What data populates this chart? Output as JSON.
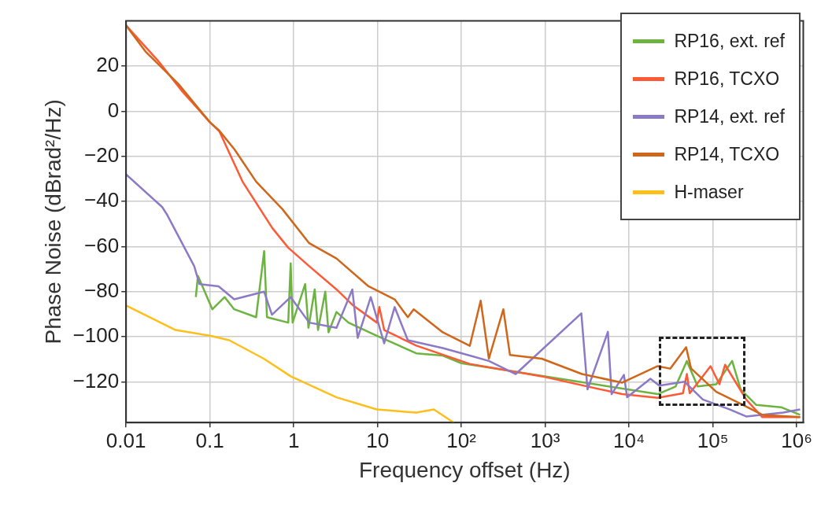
{
  "chart_data": {
    "type": "line",
    "xlabel": "Frequency offset (Hz)",
    "ylabel": "Phase Noise (dBrad²/Hz)",
    "log": "x",
    "grid": true,
    "legend": "top right",
    "marker": "none",
    "line_style": "solid",
    "xlim": [
      0.01,
      1200000
    ],
    "ylim": [
      -138,
      40
    ],
    "xticks": [
      0.01,
      0.1,
      1,
      10,
      {
        "value": 100,
        "label": "10²"
      },
      {
        "value": 1000,
        "label": "10³"
      },
      {
        "value": 10000,
        "label": "10⁴"
      },
      {
        "value": 100000,
        "label": "10⁵"
      },
      {
        "value": 1000000,
        "label": "10⁶"
      }
    ],
    "yticks": [
      -120,
      -100,
      -80,
      -60,
      -40,
      -20,
      0,
      20
    ],
    "series": [
      {
        "name": "RP16, ext. ref",
        "color": "#6db33f",
        "x": [
          0.068,
          0.072,
          0.107,
          0.15,
          0.195,
          0.356,
          0.444,
          0.48,
          0.86,
          0.92,
          0.97,
          1.37,
          1.5,
          1.78,
          1.95,
          2.38,
          2.6,
          3.24,
          4.5,
          9.8,
          29,
          60,
          100,
          22000,
          36000,
          49000,
          66000,
          110000,
          170000,
          215000,
          330000,
          650000,
          1100000
        ],
        "values": [
          -82.4,
          -73,
          -87.8,
          -82.4,
          -87.8,
          -91.3,
          -62,
          -91.3,
          -93.7,
          -67.4,
          -93.7,
          -76.6,
          -96,
          -79,
          -97,
          -80,
          -98,
          -89,
          -93.7,
          -99.5,
          -107.3,
          -108.3,
          -111.7,
          -125.4,
          -122,
          -110.7,
          -122,
          -121,
          -110.7,
          -123.3,
          -130.2,
          -131.2,
          -134.6
        ]
      },
      {
        "name": "RP16, TCXO",
        "color": "#ff5a36",
        "x": [
          0.01,
          0.024,
          0.047,
          0.1,
          0.13,
          0.245,
          0.553,
          0.86,
          1.53,
          3.24,
          5,
          9.8,
          10.5,
          12,
          29,
          126,
          910,
          8300,
          22000,
          44000,
          49000,
          53000,
          94000,
          120000,
          140000,
          250000,
          390000,
          1100000
        ],
        "values": [
          38,
          22.4,
          8.7,
          -4.9,
          -9,
          -31.2,
          -51.7,
          -60.5,
          -68.7,
          -79,
          -85.8,
          -93.7,
          -86.8,
          -97,
          -103.9,
          -112,
          -117.5,
          -125.4,
          -127,
          -125,
          -116.5,
          -125,
          -113,
          -121,
          -112.4,
          -127.8,
          -135.6,
          -135.6
        ]
      },
      {
        "name": "RP14, ext. ref",
        "color": "#8c7ac6",
        "x": [
          0.01,
          0.027,
          0.031,
          0.065,
          0.075,
          0.127,
          0.195,
          0.444,
          0.55,
          0.92,
          1.53,
          3.24,
          5,
          5.8,
          8.3,
          12,
          16,
          23,
          60,
          126,
          213,
          445,
          2700,
          3200,
          5600,
          6200,
          8700,
          9500,
          18000,
          23000,
          46000,
          76000,
          160000,
          250000,
          690000,
          1100000
        ],
        "values": [
          -28,
          -42.5,
          -46,
          -68.7,
          -76.6,
          -77.6,
          -83.4,
          -80,
          -90.2,
          -82.4,
          -93.7,
          -96,
          -79,
          -100.5,
          -82.4,
          -102.9,
          -86.8,
          -101.5,
          -105,
          -108.3,
          -110.7,
          -116.5,
          -89.6,
          -123.3,
          -97.8,
          -125.4,
          -116.9,
          -126.8,
          -118.6,
          -121.6,
          -119.9,
          -127.8,
          -132.2,
          -135.3,
          -133.6,
          -132.2
        ]
      },
      {
        "name": "RP14, TCXO",
        "color": "#d0661a",
        "x": [
          0.01,
          0.017,
          0.042,
          0.1,
          0.127,
          0.196,
          0.356,
          0.736,
          1.53,
          3.24,
          7.8,
          16,
          23,
          27,
          60,
          126,
          170,
          213,
          317,
          380,
          910,
          2750,
          8300,
          22000,
          31000,
          48000,
          55000,
          110000,
          230000,
          390000,
          1100000
        ],
        "values": [
          38,
          26.5,
          12.1,
          -4.9,
          -8.3,
          -16.9,
          -31.2,
          -43.5,
          -58.5,
          -65.3,
          -77.6,
          -83.4,
          -91.3,
          -87.8,
          -98,
          -104,
          -84,
          -109.7,
          -87.8,
          -108,
          -109.7,
          -116.5,
          -120.3,
          -113,
          -114.1,
          -104.6,
          -114,
          -124.4,
          -130.2,
          -134.6,
          -135.6
        ]
      },
      {
        "name": "H-maser",
        "color": "#ffbf1a",
        "x": [
          0.01,
          0.019,
          0.039,
          0.1,
          0.17,
          0.44,
          0.92,
          3.24,
          9.8,
          29,
          47,
          81
        ],
        "values": [
          -86.1,
          -91.3,
          -97,
          -99.5,
          -101.5,
          -109.7,
          -117.5,
          -126.8,
          -132.2,
          -133.6,
          -132.2,
          -138
        ]
      }
    ]
  }
}
